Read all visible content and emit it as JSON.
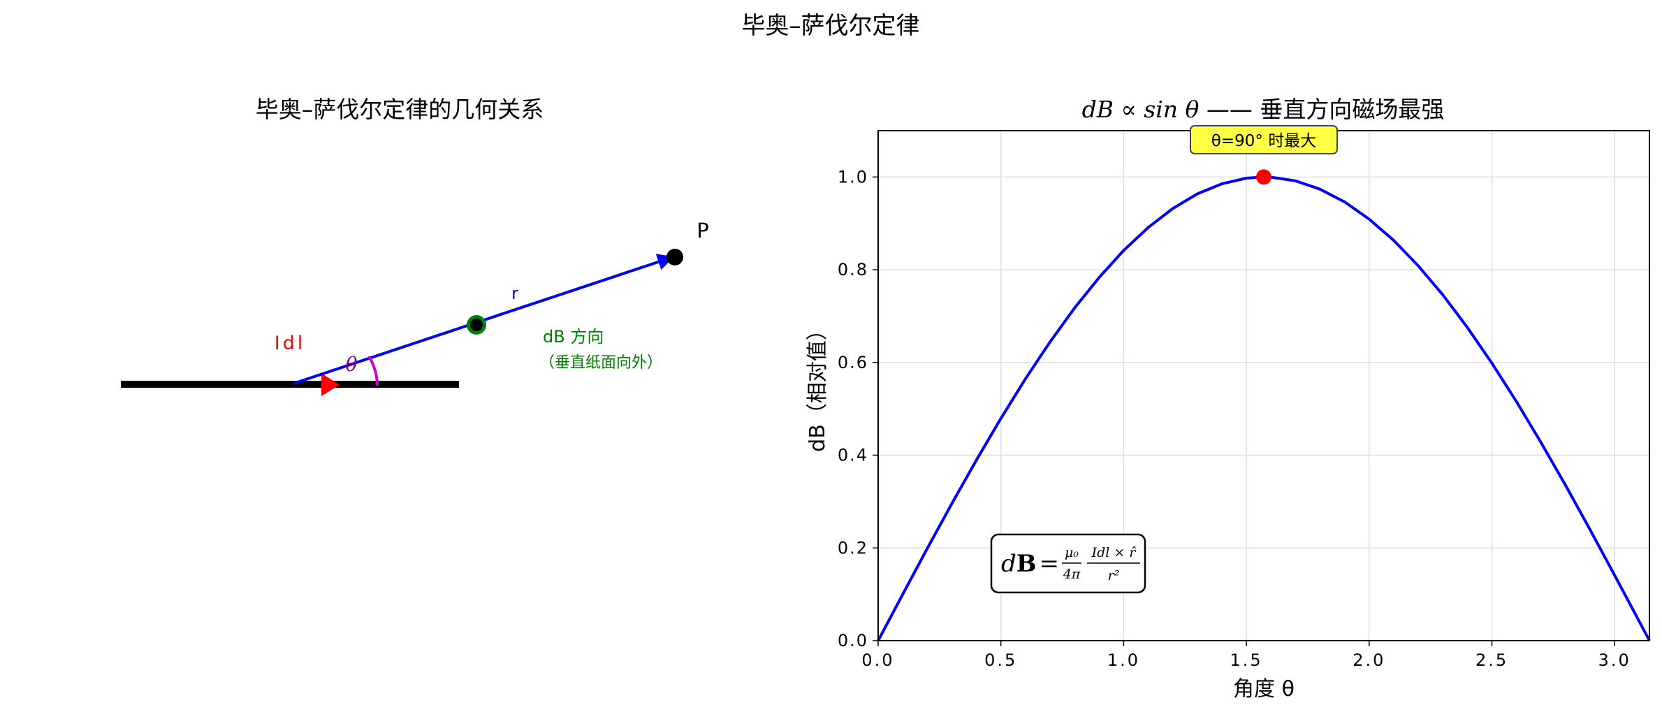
{
  "figure": {
    "suptitle": "毕奥–萨伐尔定律"
  },
  "left_panel": {
    "title": "毕奥–萨伐尔定律的几何关系",
    "labels": {
      "current_element": "Idl",
      "angle": "θ",
      "r_vector": "r",
      "point": "P",
      "db_direction": "dB 方向",
      "db_direction_note": "（垂直纸面向外）"
    },
    "colors": {
      "wire": "#000000",
      "current_arrow": "#ff0000",
      "r_vector": "#0000ff",
      "angle_arc": "#cc00cc",
      "db_marker": "#008000",
      "point": "#000000"
    }
  },
  "chart_data": {
    "type": "line",
    "title_math": "dB ∝ sin θ",
    "title_text": " ——  垂直方向磁场最强",
    "xlabel": "角度  θ",
    "ylabel": "dB（相对值）",
    "xlim": [
      0,
      3.14159
    ],
    "ylim": [
      0,
      1.1
    ],
    "xticks": [
      0.0,
      0.5,
      1.0,
      1.5,
      2.0,
      2.5,
      3.0
    ],
    "xtick_labels": [
      "0.0",
      "0.5",
      "1.0",
      "1.5",
      "2.0",
      "2.5",
      "3.0"
    ],
    "yticks": [
      0.0,
      0.2,
      0.4,
      0.6,
      0.8,
      1.0
    ],
    "ytick_labels": [
      "0.0",
      "0.2",
      "0.4",
      "0.6",
      "0.8",
      "1.0"
    ],
    "grid": true,
    "series": [
      {
        "function": "sin(theta)",
        "x": [
          0.0,
          0.1,
          0.2,
          0.3,
          0.4,
          0.5,
          0.6,
          0.7,
          0.8,
          0.9,
          1.0,
          1.1,
          1.2,
          1.3,
          1.4,
          1.5,
          1.5708,
          1.6,
          1.7,
          1.8,
          1.9,
          2.0,
          2.1,
          2.2,
          2.3,
          2.4,
          2.5,
          2.6,
          2.7,
          2.8,
          2.9,
          3.0,
          3.1,
          3.1416
        ],
        "y": [
          0.0,
          0.0998,
          0.1987,
          0.2955,
          0.3894,
          0.4794,
          0.5646,
          0.6442,
          0.7174,
          0.7833,
          0.8415,
          0.8912,
          0.932,
          0.9636,
          0.9854,
          0.9975,
          1.0,
          0.9996,
          0.9917,
          0.9738,
          0.9463,
          0.9093,
          0.8632,
          0.8085,
          0.7457,
          0.6755,
          0.5985,
          0.5155,
          0.4274,
          0.335,
          0.2392,
          0.1411,
          0.0416,
          0.0
        ],
        "color": "#0000ff"
      }
    ],
    "max_point": {
      "x": 1.5708,
      "y": 1.0,
      "color": "#ff0000"
    },
    "annotation": {
      "text": "θ=90°   时最大",
      "bg": "#ffff44"
    },
    "formula_box": {
      "lhs_d": "d",
      "lhs_B": "B",
      "eq": "=",
      "num1": "μ₀",
      "den1": "4π",
      "num2": "Idl × r̂",
      "den2": "r²"
    }
  }
}
